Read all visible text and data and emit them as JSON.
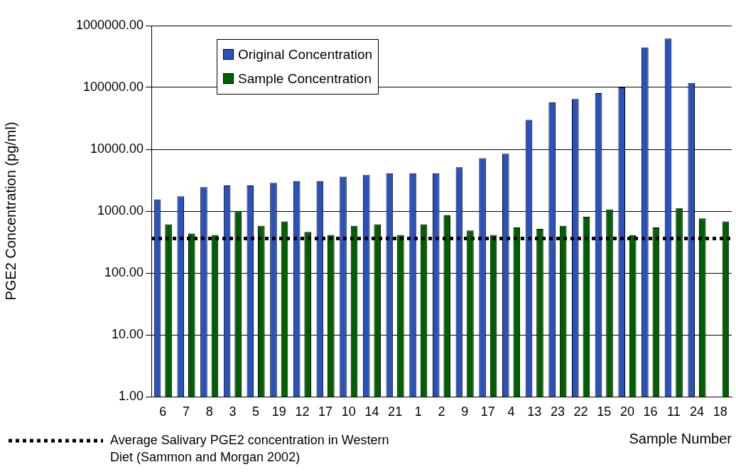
{
  "chart_data": {
    "type": "bar",
    "ylabel": "PGE2 Concentration (pg/ml)",
    "xlabel": "Sample Number",
    "categories": [
      "6",
      "7",
      "8",
      "3",
      "5",
      "19",
      "12",
      "17",
      "10",
      "14",
      "21",
      "1",
      "2",
      "9",
      "17",
      "4",
      "13",
      "23",
      "22",
      "15",
      "20",
      "16",
      "11",
      "24",
      "18"
    ],
    "series": [
      {
        "name": "Original Concentration",
        "color": "#2a52be",
        "values": [
          1550,
          1730,
          2450,
          2590,
          2590,
          2860,
          3050,
          3050,
          3600,
          3830,
          4080,
          4080,
          4080,
          5130,
          7160,
          8500,
          30000,
          57600,
          65000,
          81000,
          100000,
          443000,
          615000,
          118000,
          null
        ]
      },
      {
        "name": "Sample Concentration",
        "color": "#006000",
        "values": [
          611,
          435,
          412,
          990,
          578,
          681,
          460,
          412,
          578,
          611,
          412,
          611,
          856,
          485,
          410,
          545,
          516,
          578,
          810,
          1070,
          410,
          545,
          1120,
          760,
          680
        ]
      }
    ],
    "log": "y",
    "ylim": [
      1,
      1000000
    ],
    "yticks": [
      {
        "value": 1,
        "label": "1.00"
      },
      {
        "value": 10,
        "label": "10.00"
      },
      {
        "value": 100,
        "label": "100.00"
      },
      {
        "value": 1000,
        "label": "1000.00"
      },
      {
        "value": 10000,
        "label": "10000.00"
      },
      {
        "value": 100000,
        "label": "100000.00"
      },
      {
        "value": 1000000,
        "label": "1000000.00"
      }
    ],
    "grid": "y",
    "legend": "top left",
    "ref_lines": [
      {
        "axis": "y",
        "value": 360,
        "color": "#000000",
        "line_style": "dotted"
      }
    ],
    "annotations": [
      "Average Salivary PGE2 concentration in Western Diet (Sammon and Morgan 2002)"
    ]
  }
}
